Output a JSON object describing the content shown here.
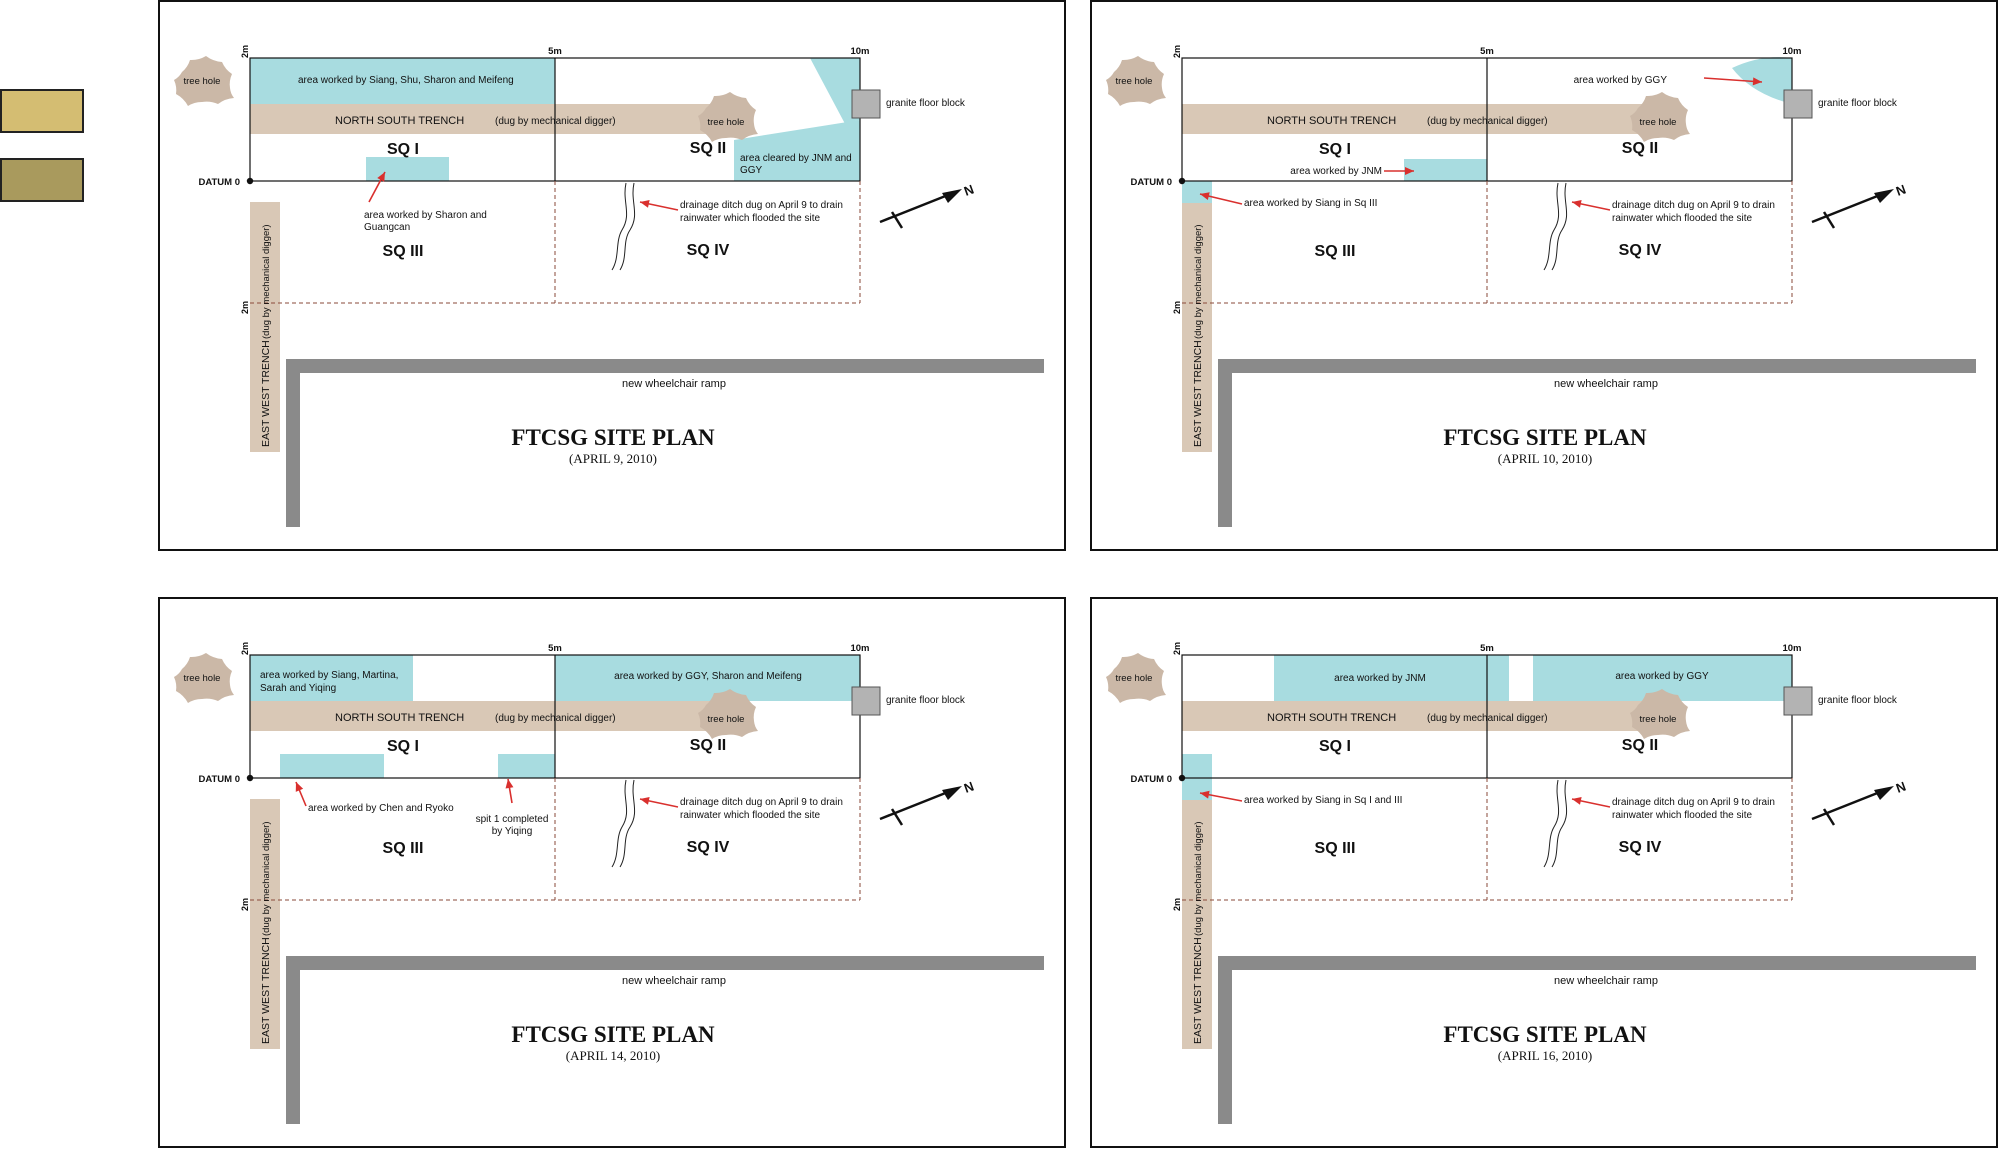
{
  "legend": {
    "swatch_colors": [
      "#d4bd72",
      "#a99a5d"
    ]
  },
  "colors": {
    "trench": "#d9c8b6",
    "worked": "#a8dce0",
    "tree": "#cbb8a7",
    "ramp": "#8a8a8a",
    "arrow": "#d9302e",
    "block": "#b3b3b3",
    "frame": "#111111"
  },
  "common": {
    "title": "FTCSG SITE PLAN",
    "scale_0": "2m",
    "scale_5": "5m",
    "scale_10": "10m",
    "scale_2m_left": "2m",
    "scale_2m_low": "2m",
    "datum": "DATUM 0",
    "tree_hole_left": "tree hole",
    "tree_hole_sq2": "tree hole",
    "granite": "granite floor block",
    "north_south_trench": "NORTH SOUTH TRENCH",
    "north_south_note": "(dug by mechanical digger)",
    "east_west_trench": "EAST WEST TRENCH",
    "east_west_note": "(dug by mechanical digger)",
    "sq1": "SQ I",
    "sq2": "SQ II",
    "sq3": "SQ III",
    "sq4": "SQ IV",
    "ditch_line1": "drainage ditch dug on April 9 to drain",
    "ditch_line2": "rainwater which flooded the site",
    "ramp": "new wheelchair ramp",
    "north": "N"
  },
  "panels": [
    {
      "date": "(APRIL 9, 2010)",
      "notes": [
        "area worked by Siang, Shu, Sharon and Meifeng",
        "area cleared by JNM and",
        "GGY",
        "area worked by Sharon and",
        "Guangcan"
      ]
    },
    {
      "date": "(APRIL 10, 2010)",
      "notes": [
        "area worked by GGY",
        "area worked by JNM",
        "area worked by Siang in Sq III"
      ]
    },
    {
      "date": "(APRIL 14, 2010)",
      "notes": [
        "area worked by Siang, Martina,",
        "Sarah and Yiqing",
        "area worked by GGY, Sharon and Meifeng",
        "area worked by Chen and Ryoko",
        "spit 1 completed",
        "by Yiqing"
      ]
    },
    {
      "date": "(APRIL 16, 2010)",
      "notes": [
        "area worked by JNM",
        "area worked by GGY",
        "area worked by Siang in Sq I and III"
      ]
    }
  ]
}
